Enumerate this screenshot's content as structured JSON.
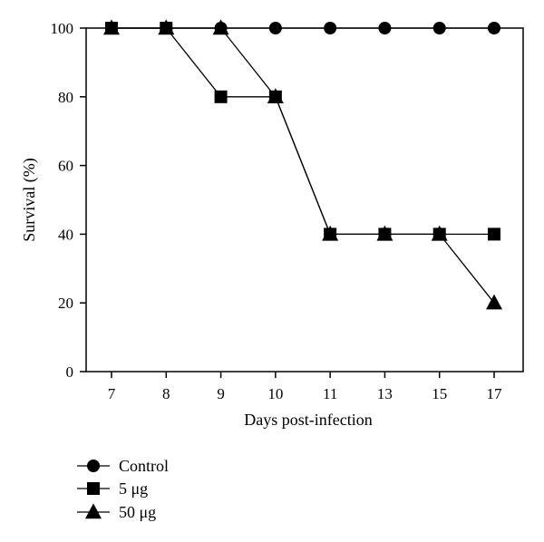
{
  "chart_data": {
    "type": "line",
    "x_categories": [
      "7",
      "8",
      "9",
      "10",
      "11",
      "13",
      "15",
      "17"
    ],
    "y_ticks": [
      0,
      20,
      40,
      60,
      80,
      100
    ],
    "ylim": [
      0,
      100
    ],
    "xlabel": "Days post-infection",
    "ylabel": "Survival (%)",
    "legend_position": "bottom-left",
    "grid": false,
    "series": [
      {
        "name": "Control",
        "marker": "circle",
        "values": [
          100,
          100,
          100,
          100,
          100,
          100,
          100,
          100
        ]
      },
      {
        "name": "5 μg",
        "marker": "square",
        "values": [
          100,
          100,
          80,
          80,
          40,
          40,
          40,
          40
        ]
      },
      {
        "name": "50 μg",
        "marker": "triangle",
        "values": [
          100,
          100,
          100,
          80,
          40,
          40,
          40,
          20
        ]
      }
    ]
  }
}
